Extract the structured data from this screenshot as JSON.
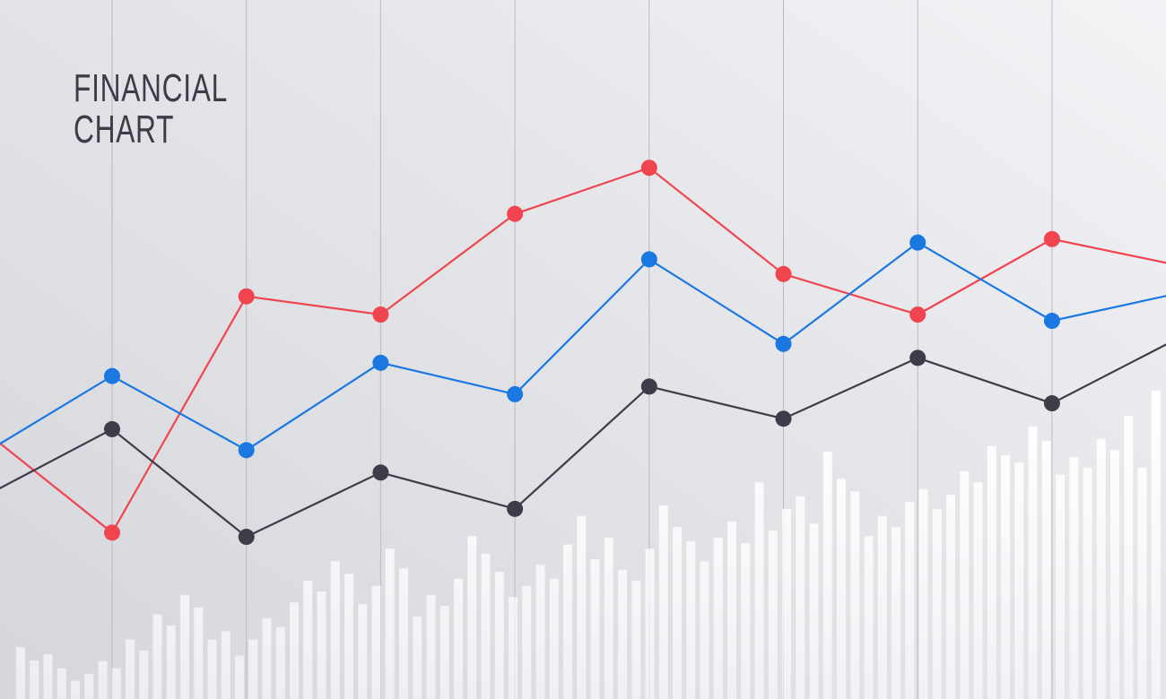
{
  "chart_data": [
    {
      "type": "line",
      "title": "FINANCIAL CHART",
      "ylim": [
        0,
        100
      ],
      "series": [
        {
          "color": "#f0454f",
          "values": [
            39.1,
            23.8,
            57.6,
            55.0,
            69.4,
            76.0,
            60.8,
            55.0,
            65.8,
            61.8
          ]
        },
        {
          "color": "#1a78e0",
          "values": [
            34.6,
            46.2,
            35.6,
            48.1,
            43.6,
            62.9,
            50.8,
            65.3,
            54.1,
            58.3
          ]
        },
        {
          "color": "#3c3d48",
          "values": [
            28.5,
            38.6,
            23.2,
            32.4,
            27.2,
            44.7,
            40.1,
            48.8,
            42.3,
            52.2
          ]
        }
      ]
    },
    {
      "type": "bar",
      "ylim": [
        0,
        100
      ],
      "color": "#ffffff",
      "values": [
        7.4,
        5.5,
        6.4,
        4.4,
        2.6,
        3.6,
        5.4,
        4.4,
        8.5,
        6.9,
        12.1,
        10.5,
        14.9,
        13.1,
        8.5,
        9.7,
        6.2,
        8.5,
        11.5,
        10.3,
        13.8,
        16.9,
        15.4,
        19.7,
        17.9,
        13.6,
        16.2,
        21.5,
        18.7,
        11.8,
        14.9,
        13.3,
        17.2,
        23.3,
        20.8,
        18.2,
        14.6,
        16.2,
        19.2,
        17.2,
        22.1,
        26.2,
        20.0,
        23.1,
        18.5,
        16.9,
        21.5,
        27.7,
        24.6,
        22.6,
        19.7,
        23.1,
        25.4,
        22.3,
        31.0,
        24.1,
        27.2,
        29.0,
        25.1,
        35.4,
        31.5,
        29.7,
        23.3,
        26.2,
        24.6,
        28.2,
        30.0,
        27.2,
        29.2,
        32.6,
        31.0,
        36.2,
        34.9,
        33.8,
        39.0,
        36.9,
        32.1,
        34.6,
        33.1,
        37.2,
        35.6,
        40.5,
        33.1,
        44.1
      ]
    }
  ]
}
